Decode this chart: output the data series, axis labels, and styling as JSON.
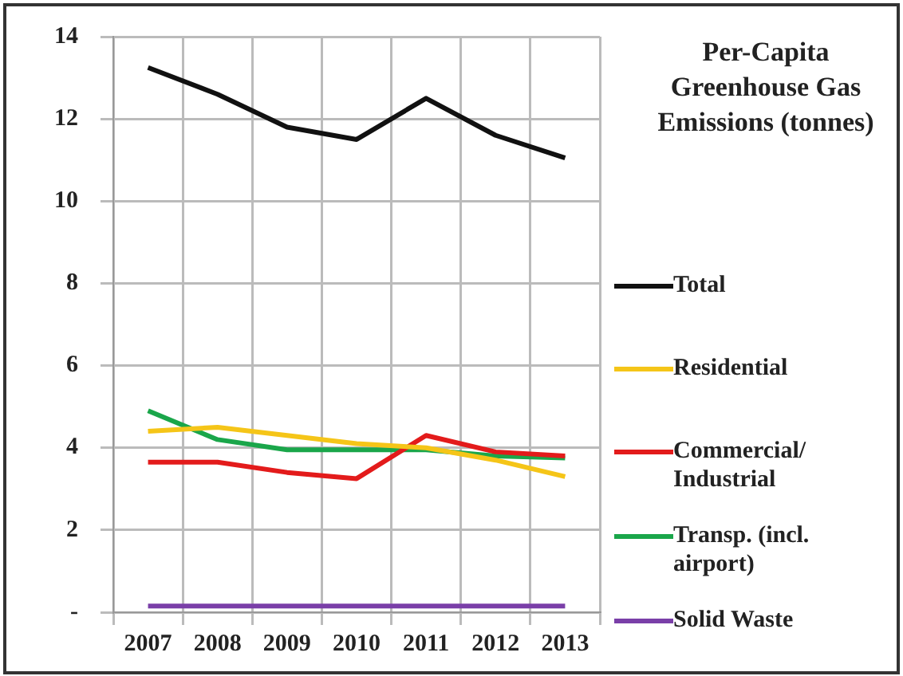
{
  "chart_data": {
    "type": "line",
    "title": "Per-Capita Greenhouse Gas Emissions (tonnes)",
    "categories": [
      "2007",
      "2008",
      "2009",
      "2010",
      "2011",
      "2012",
      "2013"
    ],
    "series": [
      {
        "name": "Total",
        "color": "#111111",
        "values": [
          13.25,
          12.6,
          11.8,
          11.5,
          12.5,
          11.6,
          11.05
        ]
      },
      {
        "name": "Residential",
        "color": "#f5c518",
        "values": [
          4.4,
          4.5,
          4.3,
          4.1,
          4.0,
          3.7,
          3.3
        ]
      },
      {
        "name": "Commercial/ Industrial",
        "color": "#e31b1b",
        "values": [
          3.65,
          3.65,
          3.4,
          3.25,
          4.3,
          3.9,
          3.8
        ]
      },
      {
        "name": "Transp. (incl. airport)",
        "color": "#1aa64a",
        "values": [
          4.9,
          4.2,
          3.95,
          3.95,
          3.95,
          3.8,
          3.75
        ]
      },
      {
        "name": "Solid Waste",
        "color": "#7a3fa8",
        "values": [
          0.15,
          0.15,
          0.15,
          0.15,
          0.15,
          0.15,
          0.15
        ]
      }
    ],
    "ylim": [
      0,
      14
    ],
    "yticks": [
      {
        "value": 0,
        "label": "-"
      },
      2,
      4,
      6,
      8,
      10,
      12,
      14
    ],
    "grid": true,
    "legend": "right",
    "marker": "none",
    "line_style": "solid"
  }
}
